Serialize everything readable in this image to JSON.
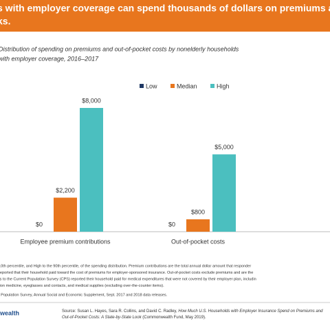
{
  "header": {
    "title_lines": [
      "s with employer coverage can spend thousands of dollars on premiums a",
      "ks."
    ]
  },
  "chart_data": {
    "type": "bar",
    "subtitle_lines": [
      "Distribution of spending on premiums and out-of-pocket costs by nonelderly households",
      "with employer coverage, 2016–2017"
    ],
    "categories": [
      "Employee premium contributions",
      "Out-of-pocket costs"
    ],
    "series": [
      {
        "name": "Low",
        "color": "#1f3864",
        "values": [
          0,
          0
        ],
        "value_labels": [
          "$0",
          "$0"
        ]
      },
      {
        "name": "Median",
        "color": "#e8761e",
        "values": [
          2200,
          800
        ],
        "value_labels": [
          "$2,200",
          "$800"
        ]
      },
      {
        "name": "High",
        "color": "#4bbfbf",
        "values": [
          8000,
          5000
        ],
        "value_labels": [
          "$8,000",
          "$5,000"
        ]
      }
    ],
    "ylim": [
      0,
      8000
    ],
    "legend": "top"
  },
  "notes": [
    "10th percentile, and High to the 90th percentile, of the spending distribution. Premium contributions are the total annual dollar amount that responder",
    "reported that their household paid toward the cost of premiums for employer-sponsored insurance. Out-of-pocket costs exclude premiums and are the",
    "ts to the Current Population Survey (CPS) reported their household paid for medical expenditures that were not covered by their employer plan, includin",
    "tion medicine, eyeglasses and contacts, and medical supplies (excluding over-the-counter items).",
    "t Population Survey, Annual Social and Economic Supplement, Sept. 2017 and 2018 data releases."
  ],
  "source": [
    [
      {
        "text": "Source: Susan L. Hayes, Sara R. Collins, and David C. Radley, ",
        "italic": false
      },
      {
        "text": "How Much U.S. Households with Employer Insurance Spend on Premiums and",
        "italic": true
      }
    ],
    [
      {
        "text": "Out-of-Pocket Costs: A State-by-State Look",
        "italic": true
      },
      {
        "text": " (Commonwealth Fund, May 2019).",
        "italic": false
      }
    ]
  ],
  "logo": "wealth"
}
